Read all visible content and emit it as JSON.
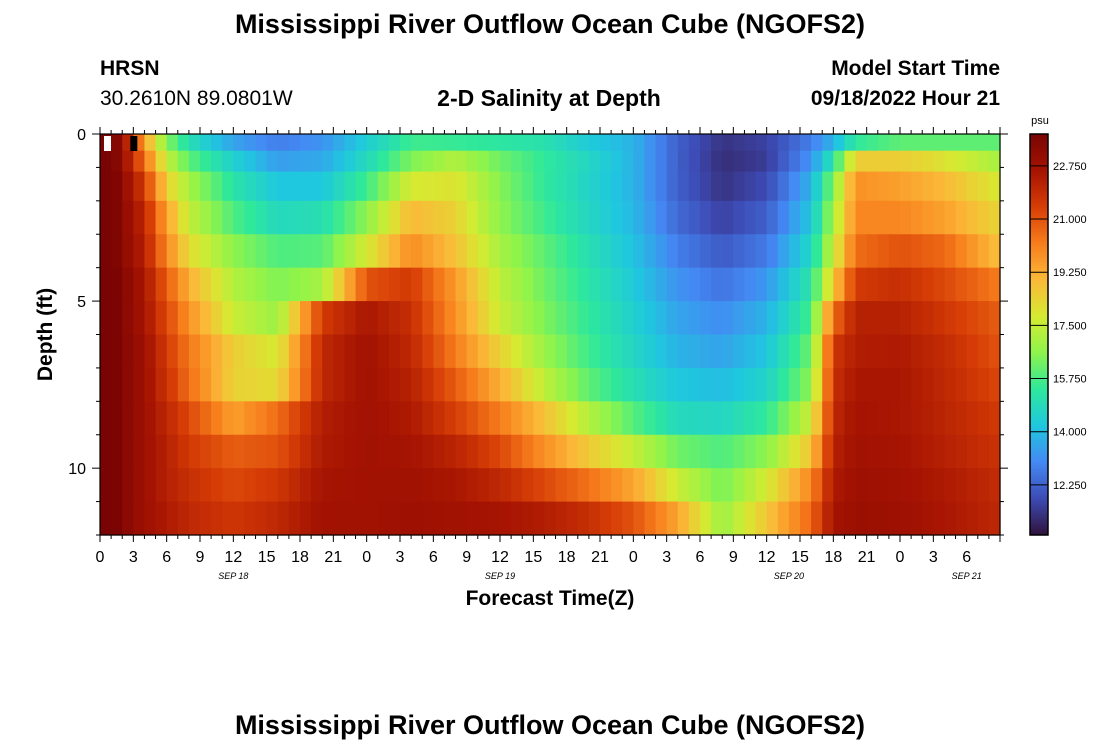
{
  "page_title": "Mississippi River Outflow Ocean Cube (NGOFS2)",
  "footer_title": "Mississippi River Outflow Ocean Cube (NGOFS2)",
  "station": {
    "name": "HRSN",
    "coords": "30.2610N  89.0801W"
  },
  "model": {
    "label": "Model Start Time",
    "start": "09/18/2022 Hour 21"
  },
  "colors": {
    "stops": [
      "#30123b",
      "#3d4bb5",
      "#4489f4",
      "#1fc8de",
      "#2ee89c",
      "#8ef44b",
      "#d6ea31",
      "#fbb938",
      "#f77d1c",
      "#d63d06",
      "#a51302",
      "#7a0403"
    ]
  },
  "chart_data": {
    "type": "heatmap",
    "title": "2-D Salinity at Depth",
    "xlabel": "Forecast Time(Z)",
    "ylabel": "Depth (ft)",
    "colorbar_label": "psu",
    "colorbar_ticks": [
      "22.750",
      "21.000",
      "19.250",
      "17.500",
      "15.750",
      "14.000",
      "12.250"
    ],
    "colorbar_tick_values": [
      22.75,
      21.0,
      19.25,
      17.5,
      15.75,
      14.0,
      12.25
    ],
    "color_range": [
      10.6,
      23.8
    ],
    "x_range_hours": [
      0,
      81
    ],
    "x_ticks": [
      "0",
      "3",
      "6",
      "9",
      "12",
      "15",
      "18",
      "21",
      "0",
      "3",
      "6",
      "9",
      "12",
      "15",
      "18",
      "21",
      "0",
      "3",
      "6",
      "9",
      "12",
      "15",
      "18",
      "21",
      "0",
      "3",
      "6"
    ],
    "date_labels": [
      {
        "label": "SEP 18",
        "hour": 12
      },
      {
        "label": "SEP 19",
        "hour": 36
      },
      {
        "label": "SEP 20",
        "hour": 62
      },
      {
        "label": "SEP 21",
        "hour": 78
      }
    ],
    "y_ticks": [
      "0",
      "5",
      "10"
    ],
    "y_tick_values": [
      0,
      5,
      10
    ],
    "y_range_ft": [
      0,
      12
    ],
    "depth_levels_ft": [
      0.25,
      0.75,
      1.5,
      2.5,
      3.5,
      4.5,
      5.5,
      6.5,
      7.5,
      8.5,
      9.5,
      10.5,
      11.5
    ],
    "time_steps": 81,
    "control_hours": [
      0,
      1,
      2,
      4,
      6,
      8,
      12,
      16,
      20,
      24,
      28,
      32,
      36,
      40,
      44,
      48,
      52,
      56,
      60,
      64,
      66,
      68,
      72,
      76,
      81
    ],
    "control_values": [
      [
        24,
        24,
        23,
        19.5,
        16.5,
        15,
        13.5,
        12.8,
        13.2,
        14.4,
        15.6,
        15.5,
        15.3,
        15.1,
        14.3,
        13.8,
        12.2,
        11.3,
        11.6,
        12.8,
        13.8,
        15.4,
        16,
        16,
        16
      ],
      [
        24,
        24,
        23,
        20.5,
        17.5,
        16,
        14.5,
        13.4,
        13.6,
        14.8,
        16.4,
        17.2,
        16.2,
        15.4,
        14.7,
        13.8,
        12.2,
        11.2,
        11.5,
        13.2,
        15.2,
        18.5,
        18.5,
        18,
        17
      ],
      [
        24,
        24,
        23.2,
        21.5,
        18.5,
        17,
        15.2,
        14.2,
        14.2,
        15.6,
        17.8,
        18,
        16.5,
        15.4,
        14.6,
        13.8,
        12.2,
        11.3,
        11.8,
        13.8,
        16.5,
        19.8,
        19.5,
        19,
        17.8
      ],
      [
        24,
        24,
        23.3,
        22,
        19.5,
        17.5,
        15.8,
        14.8,
        15,
        16.6,
        19,
        18.4,
        16.6,
        15.6,
        14.7,
        13.9,
        12.4,
        11.6,
        12.2,
        14.2,
        17,
        20,
        20,
        19.5,
        18.3
      ],
      [
        24,
        24,
        23.3,
        22.2,
        20,
        18.2,
        16.6,
        15.8,
        15.9,
        17.8,
        19.9,
        18.8,
        17,
        16,
        15,
        14.1,
        12.8,
        12.1,
        12.7,
        14.7,
        17.6,
        20.5,
        21,
        20.6,
        18.8
      ],
      [
        24,
        24,
        23.5,
        22.5,
        20.8,
        19.2,
        17.2,
        16.4,
        17,
        21,
        21.5,
        19.6,
        17.4,
        16.2,
        15.2,
        14.3,
        13.2,
        12.6,
        13.3,
        15.2,
        18.6,
        21.5,
        21.8,
        21.2,
        20.2
      ],
      [
        24,
        24,
        23.5,
        22.6,
        21.2,
        19.8,
        17.6,
        16.8,
        21.5,
        22.5,
        21.8,
        19.8,
        17.6,
        16.4,
        15.4,
        14.5,
        13.5,
        13.1,
        13.8,
        15.7,
        20.5,
        22.2,
        22.2,
        21.6,
        20.8
      ],
      [
        24,
        24,
        23.5,
        22.8,
        21.5,
        20.3,
        18.5,
        17.8,
        22,
        22.7,
        22,
        20.2,
        18.4,
        16.8,
        15.6,
        14.7,
        13.8,
        13.5,
        14.2,
        16.2,
        21.6,
        22.3,
        22.4,
        21.9,
        21
      ],
      [
        24,
        24,
        23.5,
        22.8,
        21.7,
        20.5,
        18.4,
        18.2,
        22,
        22.7,
        22.2,
        20.8,
        19.2,
        17.4,
        16,
        15,
        14.2,
        14,
        14.6,
        16.6,
        21.8,
        22.5,
        22.5,
        22,
        21.2
      ],
      [
        24,
        24,
        23.5,
        22.8,
        22,
        21.2,
        19.5,
        20.5,
        22.3,
        22.7,
        22.4,
        21.4,
        20.2,
        18.8,
        17.2,
        15.9,
        14.8,
        14.7,
        15.4,
        17.6,
        22,
        22.6,
        22.5,
        22.1,
        21.5
      ],
      [
        24,
        24,
        23.5,
        22.8,
        22.2,
        21.5,
        20.8,
        21,
        22.4,
        22.7,
        22.6,
        22.1,
        21.2,
        19.8,
        18.6,
        17.5,
        16.2,
        15.8,
        16.6,
        18.7,
        22.2,
        22.7,
        22.6,
        22.2,
        21.7
      ],
      [
        24,
        24,
        23.5,
        22.8,
        22.2,
        21.8,
        21.2,
        21.6,
        22.6,
        22.7,
        22.7,
        22.5,
        22,
        21.2,
        20.4,
        19.4,
        17.6,
        16.3,
        17.8,
        20,
        22.4,
        22.8,
        22.7,
        22.4,
        21.9
      ],
      [
        24,
        24,
        23.5,
        22.8,
        22.4,
        22,
        21.6,
        22,
        22.7,
        22.7,
        22.8,
        22.7,
        22.6,
        22.3,
        21.8,
        21,
        19.4,
        16.8,
        18.7,
        20.6,
        22.6,
        22.9,
        22.8,
        22.5,
        22
      ]
    ]
  }
}
